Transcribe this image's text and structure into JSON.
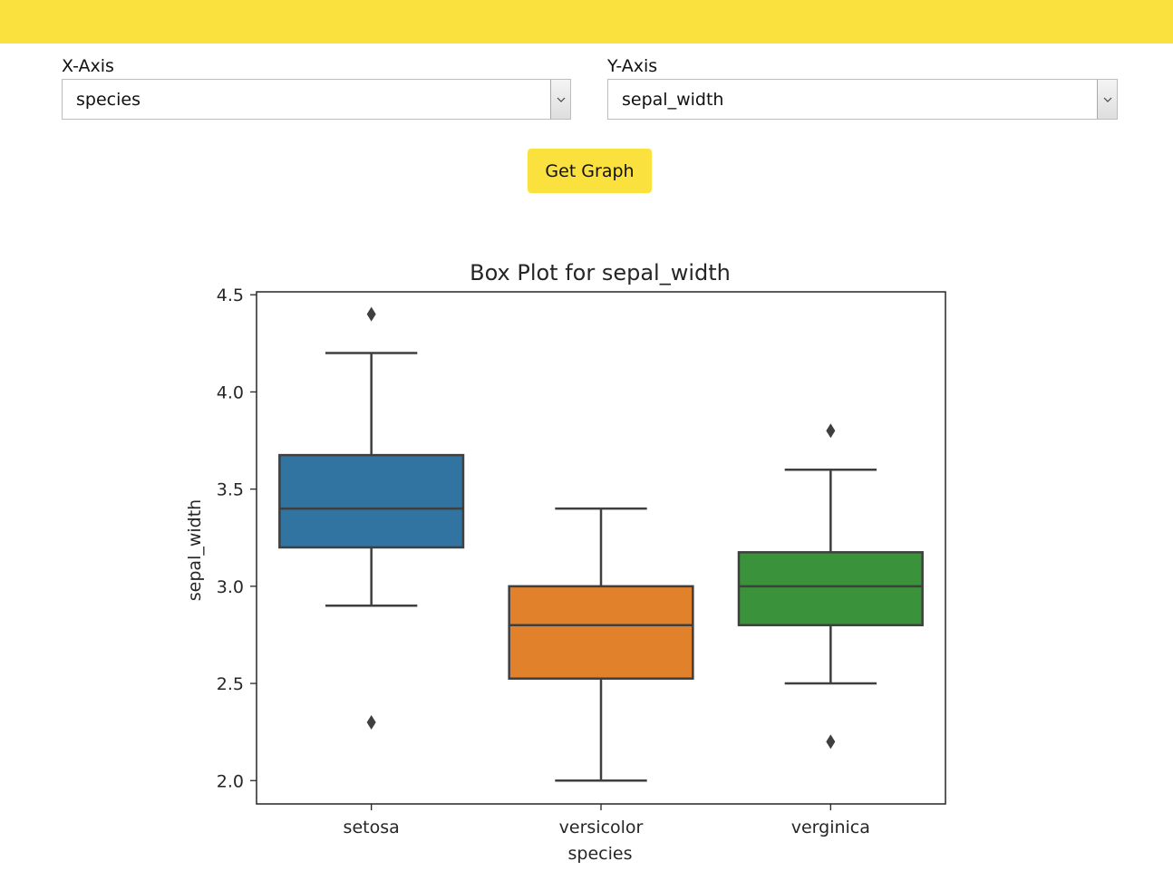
{
  "header": {
    "bar_color": "#fbe13e"
  },
  "controls": {
    "x_axis": {
      "label": "X-Axis",
      "selected": "species"
    },
    "y_axis": {
      "label": "Y-Axis",
      "selected": "sepal_width"
    },
    "button_label": "Get Graph"
  },
  "chart_data": {
    "type": "box",
    "title": "Box Plot for sepal_width",
    "xlabel": "species",
    "ylabel": "sepal_width",
    "ylim": [
      1.88,
      4.515
    ],
    "y_ticks": [
      2.0,
      2.5,
      3.0,
      3.5,
      4.0,
      4.5
    ],
    "y_tick_labels": [
      "2.0",
      "2.5",
      "3.0",
      "3.5",
      "4.0",
      "4.5"
    ],
    "categories": [
      "setosa",
      "versicolor",
      "verginica"
    ],
    "boxes": [
      {
        "category": "setosa",
        "whisker_low": 2.9,
        "q1": 3.2,
        "median": 3.4,
        "q3": 3.675,
        "whisker_high": 4.2,
        "outliers": [
          4.4,
          2.3
        ],
        "color": "#3274a1"
      },
      {
        "category": "versicolor",
        "whisker_low": 2.0,
        "q1": 2.525,
        "median": 2.8,
        "q3": 3.0,
        "whisker_high": 3.4,
        "outliers": [],
        "color": "#e1812c"
      },
      {
        "category": "verginica",
        "whisker_low": 2.5,
        "q1": 2.8,
        "median": 3.0,
        "q3": 3.175,
        "whisker_high": 3.6,
        "outliers": [
          3.8,
          2.2
        ],
        "color": "#3a923a"
      }
    ]
  }
}
